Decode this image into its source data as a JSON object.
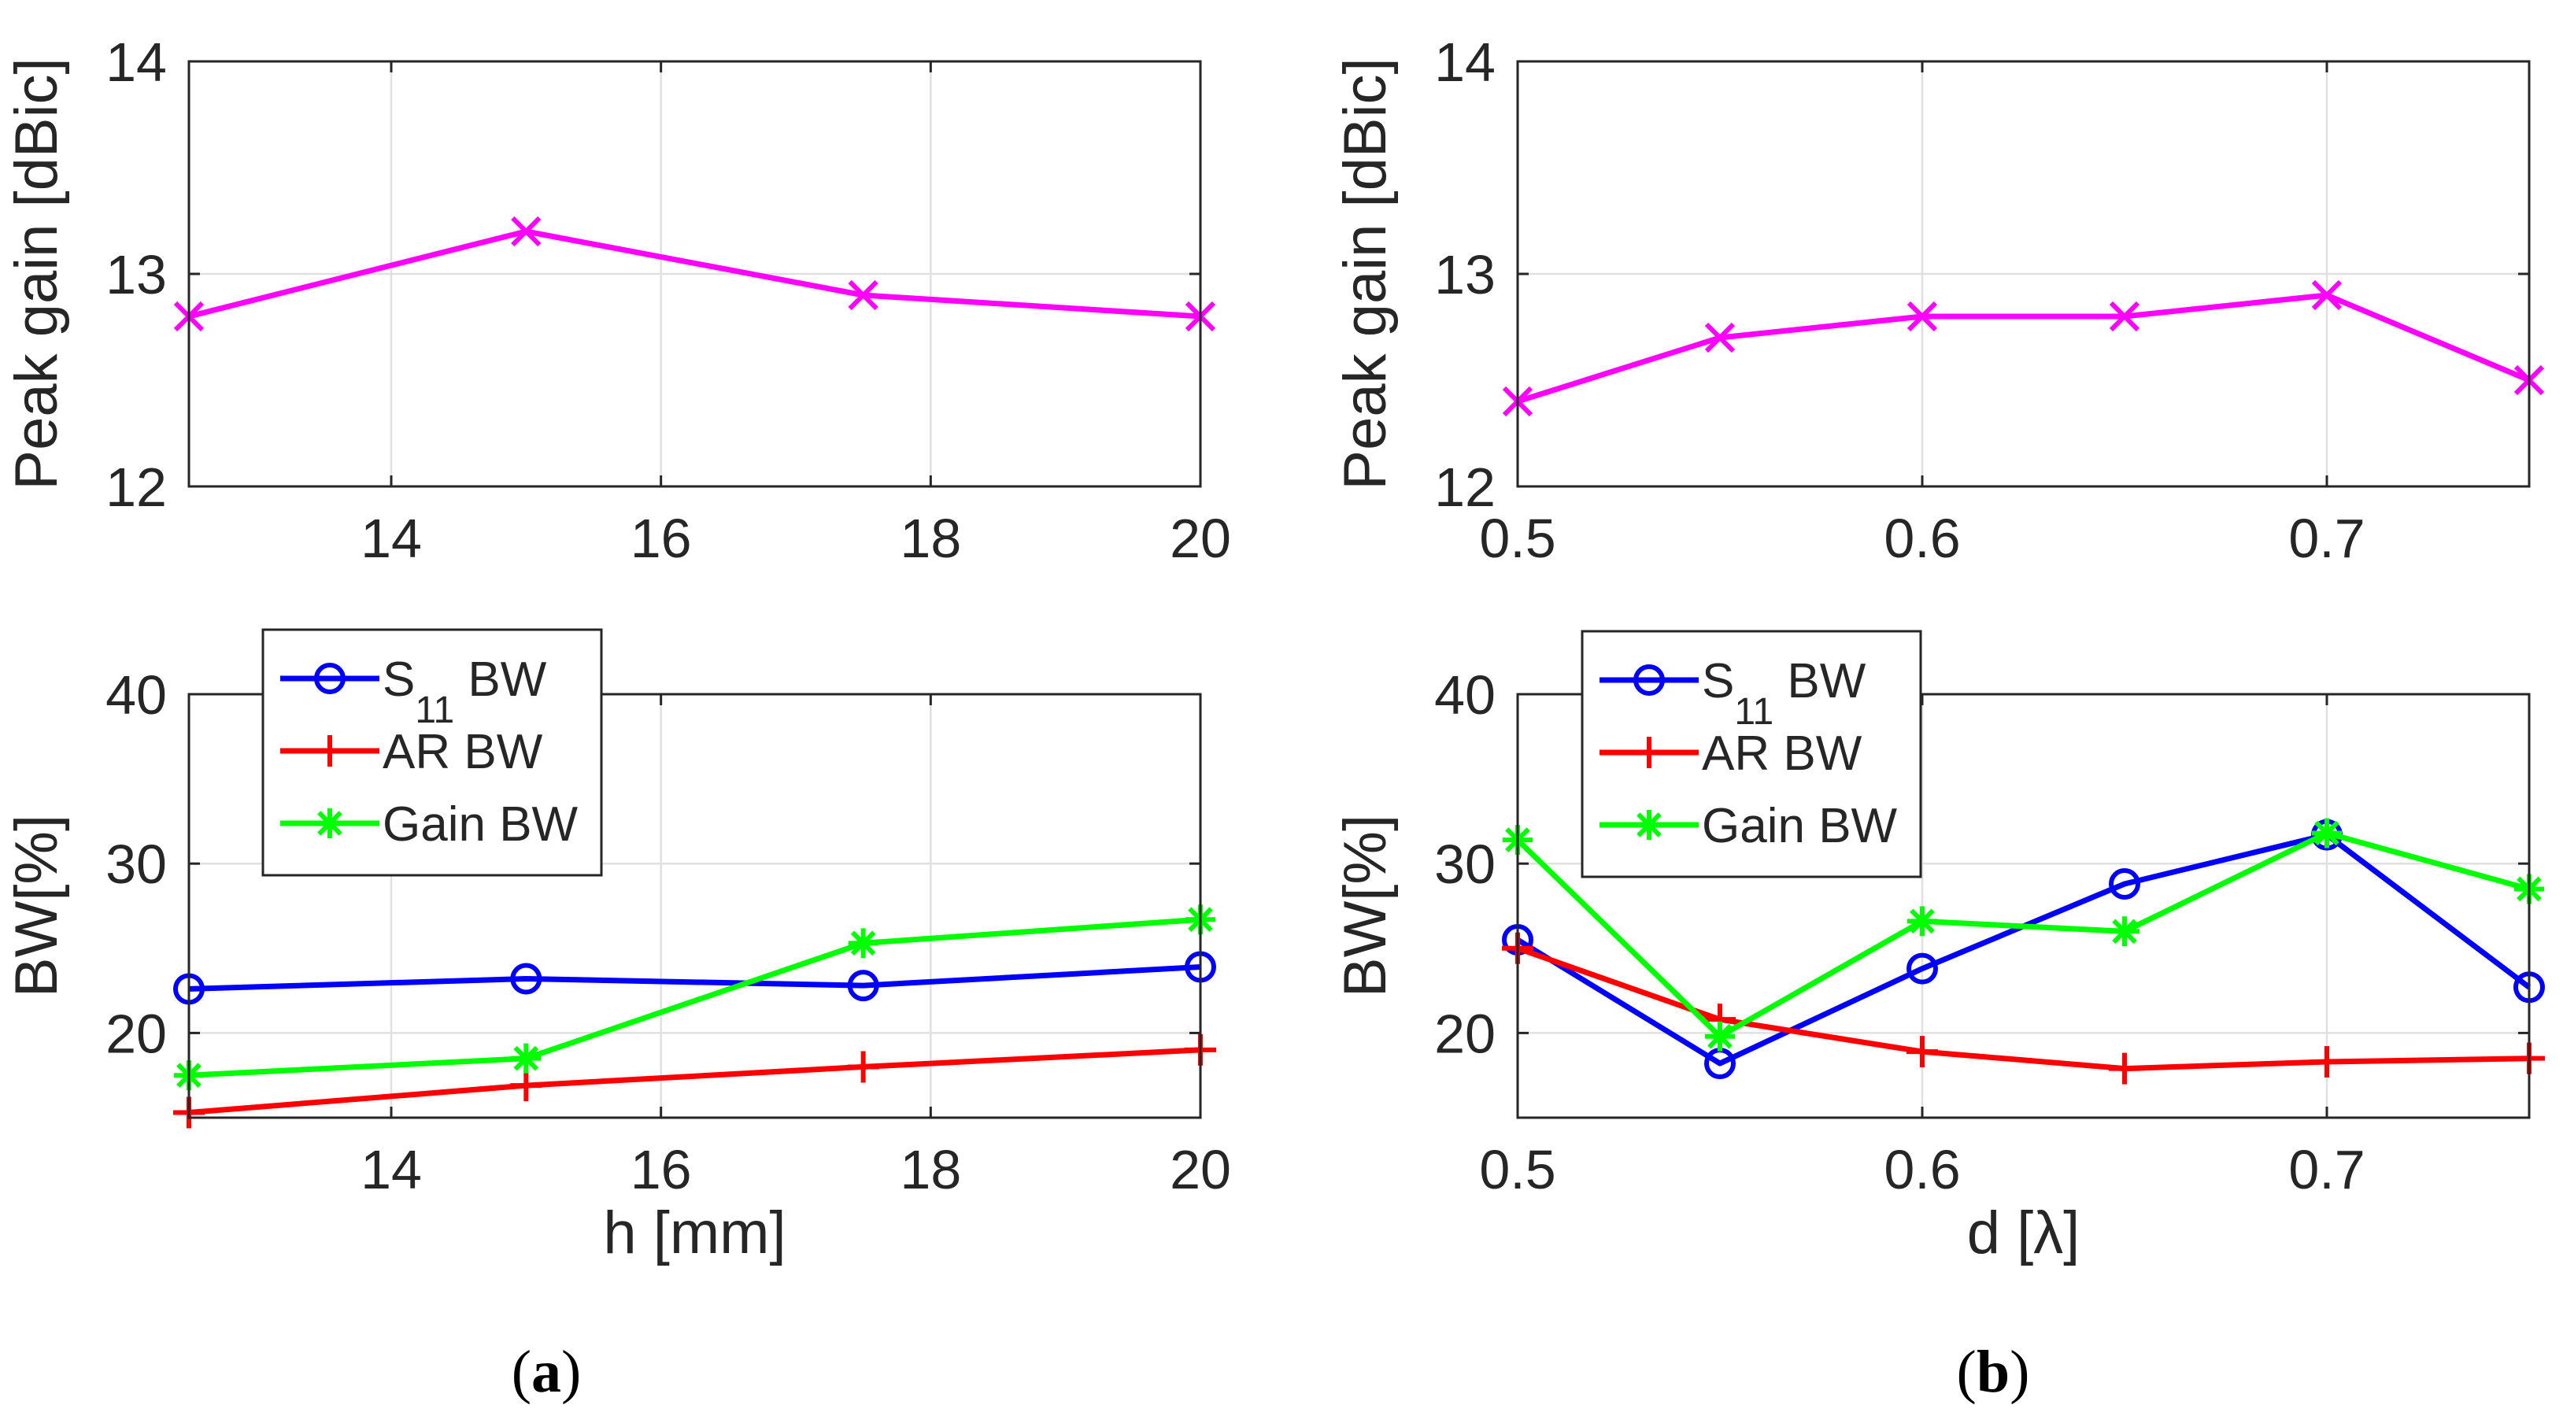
{
  "captions": {
    "a": {
      "open": "(",
      "letter": "a",
      "close": ")"
    },
    "b": {
      "open": "(",
      "letter": "b",
      "close": ")"
    }
  },
  "colors": {
    "gain": "#ff00ff",
    "s11": "#0000ff",
    "ar": "#ff0000",
    "gainbw": "#00ff00",
    "axis": "#262626",
    "grid": "#e0e0e0"
  },
  "chart_data": [
    {
      "id": "a-top",
      "type": "line",
      "panel": "a",
      "xlabel": "",
      "ylabel": "Peak gain [dBic]",
      "xlim": [
        12.5,
        20
      ],
      "ylim": [
        12,
        14
      ],
      "xticks": [
        14,
        16,
        18,
        20
      ],
      "xtick_labels": [
        "14",
        "16",
        "18",
        "20"
      ],
      "yticks": [
        12,
        13,
        14
      ],
      "ytick_labels": [
        "12",
        "13",
        "14"
      ],
      "grid": true,
      "series": [
        {
          "name": "Peak gain",
          "color_key": "gain",
          "marker": "x",
          "x": [
            12.5,
            15,
            17.5,
            20
          ],
          "values": [
            12.8,
            13.2,
            12.9,
            12.8
          ]
        }
      ]
    },
    {
      "id": "a-bottom",
      "type": "line",
      "panel": "a",
      "xlabel": "h [mm]",
      "ylabel": "BW[%]",
      "xlim": [
        12.5,
        20
      ],
      "ylim": [
        15,
        40
      ],
      "xticks": [
        14,
        16,
        18,
        20
      ],
      "xtick_labels": [
        "14",
        "16",
        "18",
        "20"
      ],
      "yticks": [
        20,
        30,
        40
      ],
      "ytick_labels": [
        "20",
        "30",
        "40"
      ],
      "grid": true,
      "legend": {
        "placement": "top-left",
        "entries": [
          {
            "series": 0,
            "text": "S",
            "sub": "11",
            "suffix": " BW"
          },
          {
            "series": 1,
            "text": "AR BW"
          },
          {
            "series": 2,
            "text": "Gain BW"
          }
        ]
      },
      "series": [
        {
          "name": "S11 BW",
          "color_key": "s11",
          "marker": "o",
          "x": [
            12.5,
            15,
            17.5,
            20
          ],
          "values": [
            22.6,
            23.2,
            22.8,
            23.9
          ]
        },
        {
          "name": "AR BW",
          "color_key": "ar",
          "marker": "+",
          "x": [
            12.5,
            15,
            17.5,
            20
          ],
          "values": [
            15.3,
            16.9,
            18.0,
            19.0
          ]
        },
        {
          "name": "Gain BW",
          "color_key": "gainbw",
          "marker": "*",
          "x": [
            12.5,
            15,
            17.5,
            20
          ],
          "values": [
            17.5,
            18.5,
            25.3,
            26.7
          ]
        }
      ]
    },
    {
      "id": "b-top",
      "type": "line",
      "panel": "b",
      "xlabel": "",
      "ylabel": "Peak gain [dBic]",
      "xlim": [
        0.5,
        0.75
      ],
      "ylim": [
        12,
        14
      ],
      "xticks": [
        0.5,
        0.6,
        0.7
      ],
      "xtick_labels": [
        "0.5",
        "0.6",
        "0.7"
      ],
      "yticks": [
        12,
        13,
        14
      ],
      "ytick_labels": [
        "12",
        "13",
        "14"
      ],
      "grid": true,
      "series": [
        {
          "name": "Peak gain",
          "color_key": "gain",
          "marker": "x",
          "x": [
            0.5,
            0.55,
            0.6,
            0.65,
            0.7,
            0.75
          ],
          "values": [
            12.4,
            12.7,
            12.8,
            12.8,
            12.9,
            12.5
          ]
        }
      ]
    },
    {
      "id": "b-bottom",
      "type": "line",
      "panel": "b",
      "xlabel": "d [λ]",
      "ylabel": "BW[%]",
      "xlim": [
        0.5,
        0.75
      ],
      "ylim": [
        15,
        40
      ],
      "xticks": [
        0.5,
        0.6,
        0.7
      ],
      "xtick_labels": [
        "0.5",
        "0.6",
        "0.7"
      ],
      "yticks": [
        20,
        30,
        40
      ],
      "ytick_labels": [
        "20",
        "30",
        "40"
      ],
      "grid": true,
      "legend": {
        "placement": "top-left",
        "entries": [
          {
            "series": 0,
            "text": "S",
            "sub": "11",
            "suffix": " BW"
          },
          {
            "series": 1,
            "text": "AR BW"
          },
          {
            "series": 2,
            "text": "Gain BW"
          }
        ]
      },
      "series": [
        {
          "name": "S11 BW",
          "color_key": "s11",
          "marker": "o",
          "x": [
            0.5,
            0.55,
            0.6,
            0.65,
            0.7,
            0.75
          ],
          "values": [
            25.5,
            18.2,
            23.8,
            28.8,
            31.7,
            22.7
          ]
        },
        {
          "name": "AR BW",
          "color_key": "ar",
          "marker": "+",
          "x": [
            0.5,
            0.55,
            0.6,
            0.65,
            0.7,
            0.75
          ],
          "values": [
            25.0,
            20.8,
            18.9,
            17.9,
            18.3,
            18.5
          ]
        },
        {
          "name": "Gain BW",
          "color_key": "gainbw",
          "marker": "*",
          "x": [
            0.5,
            0.55,
            0.6,
            0.65,
            0.7,
            0.75
          ],
          "values": [
            31.4,
            19.8,
            26.6,
            26.0,
            31.8,
            28.5
          ]
        }
      ]
    }
  ]
}
